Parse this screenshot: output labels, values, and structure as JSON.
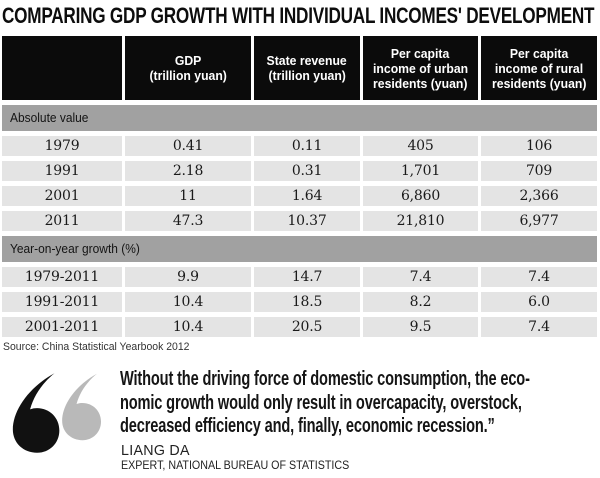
{
  "title": "COMPARING GDP GROWTH WITH INDIVIDUAL INCOMES' DEVELOPMENT",
  "table": {
    "columns": [
      {
        "lines": [
          ""
        ]
      },
      {
        "lines": [
          "GDP",
          "(trillion yuan)"
        ]
      },
      {
        "lines": [
          "State revenue",
          "(trillion yuan)"
        ]
      },
      {
        "lines": [
          "Per capita",
          "income of urban",
          "residents (yuan)"
        ]
      },
      {
        "lines": [
          "Per capita",
          "income of rural",
          "residents (yuan)"
        ]
      }
    ],
    "sections": [
      {
        "label": "Absolute value",
        "rows": [
          [
            "1979",
            "0.41",
            "0.11",
            "405",
            "106"
          ],
          [
            "1991",
            "2.18",
            "0.31",
            "1,701",
            "709"
          ],
          [
            "2001",
            "11",
            "1.64",
            "6,860",
            "2,366"
          ],
          [
            "2011",
            "47.3",
            "10.37",
            "21,810",
            "6,977"
          ]
        ]
      },
      {
        "label": "Year-on-year growth (%)",
        "rows": [
          [
            "1979-2011",
            "9.9",
            "14.7",
            "7.4",
            "7.4"
          ],
          [
            "1991-2011",
            "10.4",
            "18.5",
            "8.2",
            "6.0"
          ],
          [
            "2001-2011",
            "10.4",
            "20.5",
            "9.5",
            "7.4"
          ]
        ]
      }
    ],
    "source": "Source: China Statistical Yearbook 2012"
  },
  "quote": {
    "lines": [
      "Without the driving force of domestic consumption, the eco-",
      "nomic growth would only result in overcapacity, overstock,",
      "decreased efficiency and, finally, economic recession.”"
    ],
    "author": "LIANG DA",
    "author_title": "EXPERT, NATIONAL BUREAU OF STATISTICS"
  },
  "chart_data": {
    "type": "table",
    "title": "COMPARING GDP GROWTH WITH INDIVIDUAL INCOMES' DEVELOPMENT",
    "columns": [
      "",
      "GDP (trillion yuan)",
      "State revenue (trillion yuan)",
      "Per capita income of urban residents (yuan)",
      "Per capita income of rural residents (yuan)"
    ],
    "sections": [
      {
        "label": "Absolute value",
        "rows": [
          {
            "period": "1979",
            "gdp_trillion_yuan": 0.41,
            "state_revenue_trillion_yuan": 0.11,
            "urban_income_yuan": 405,
            "rural_income_yuan": 106
          },
          {
            "period": "1991",
            "gdp_trillion_yuan": 2.18,
            "state_revenue_trillion_yuan": 0.31,
            "urban_income_yuan": 1701,
            "rural_income_yuan": 709
          },
          {
            "period": "2001",
            "gdp_trillion_yuan": 11,
            "state_revenue_trillion_yuan": 1.64,
            "urban_income_yuan": 6860,
            "rural_income_yuan": 2366
          },
          {
            "period": "2011",
            "gdp_trillion_yuan": 47.3,
            "state_revenue_trillion_yuan": 10.37,
            "urban_income_yuan": 21810,
            "rural_income_yuan": 6977
          }
        ]
      },
      {
        "label": "Year-on-year growth (%)",
        "rows": [
          {
            "period": "1979-2011",
            "gdp_growth_pct": 9.9,
            "state_revenue_growth_pct": 14.7,
            "urban_income_growth_pct": 7.4,
            "rural_income_growth_pct": 7.4
          },
          {
            "period": "1991-2011",
            "gdp_growth_pct": 10.4,
            "state_revenue_growth_pct": 18.5,
            "urban_income_growth_pct": 8.2,
            "rural_income_growth_pct": 6.0
          },
          {
            "period": "2001-2011",
            "gdp_growth_pct": 10.4,
            "state_revenue_growth_pct": 20.5,
            "urban_income_growth_pct": 9.5,
            "rural_income_growth_pct": 7.4
          }
        ]
      }
    ],
    "source": "Source: China Statistical Yearbook 2012"
  },
  "colors": {
    "header_bg": "#0b0b0b",
    "header_text": "#ffffff",
    "section_banner_bg": "#a1a1a1",
    "cell_bg": "#e4e4e4",
    "quote_mark_black": "#111111",
    "quote_mark_gray": "#b9b9b9"
  }
}
